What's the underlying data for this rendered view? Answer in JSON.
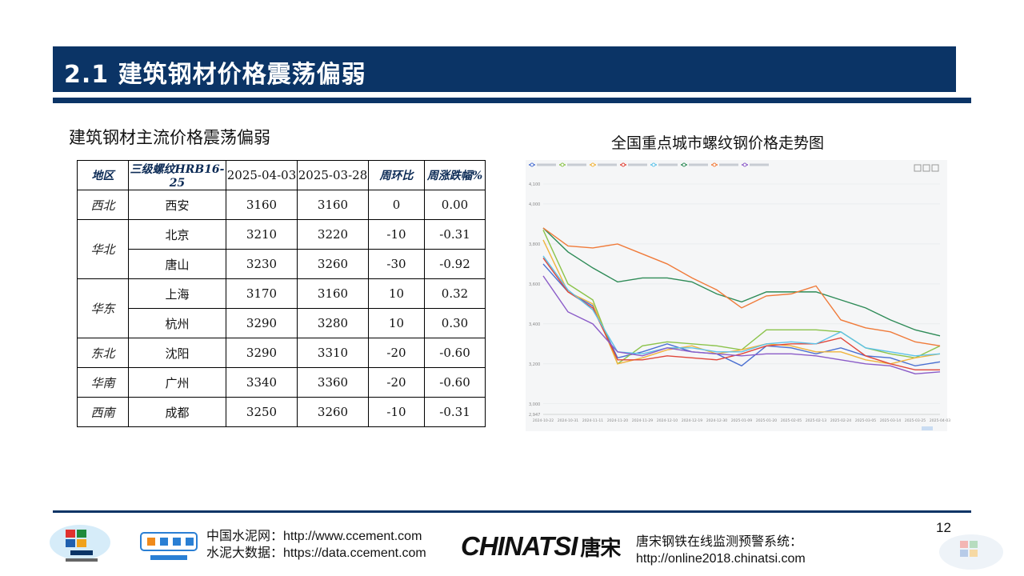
{
  "header": {
    "title": "2.1 建筑钢材价格震荡偏弱"
  },
  "subtitle": "建筑钢材主流价格震荡偏弱",
  "chart_title": "全国重点城市螺纹钢价格走势图",
  "table": {
    "headers": [
      "地区",
      "三级螺纹HRB16-25",
      "2025-04-03",
      "2025-03-28",
      "周环比",
      "周涨跌幅%"
    ],
    "rows": [
      {
        "region": "西北",
        "city": "西安",
        "current": "3160",
        "previous": "3160",
        "wow": "0",
        "pct": "0.00"
      },
      {
        "region": "华北",
        "city": "北京",
        "current": "3210",
        "previous": "3220",
        "wow": "-10",
        "pct": "-0.31"
      },
      {
        "region": "",
        "city": "唐山",
        "current": "3230",
        "previous": "3260",
        "wow": "-30",
        "pct": "-0.92"
      },
      {
        "region": "华东",
        "city": "上海",
        "current": "3170",
        "previous": "3160",
        "wow": "10",
        "pct": "0.32"
      },
      {
        "region": "",
        "city": "杭州",
        "current": "3290",
        "previous": "3280",
        "wow": "10",
        "pct": "0.30"
      },
      {
        "region": "东北",
        "city": "沈阳",
        "current": "3290",
        "previous": "3310",
        "wow": "-20",
        "pct": "-0.60"
      },
      {
        "region": "华南",
        "city": "广州",
        "current": "3340",
        "previous": "3360",
        "wow": "-20",
        "pct": "-0.60"
      },
      {
        "region": "西南",
        "city": "成都",
        "current": "3250",
        "previous": "3260",
        "wow": "-10",
        "pct": "-0.31"
      }
    ]
  },
  "chart_data": {
    "type": "line",
    "yticks": [
      "4,100",
      "4,000",
      "3,800",
      "3,600",
      "3,400",
      "3,200",
      "3,000",
      "2,947"
    ],
    "ylim": [
      2947,
      4100
    ],
    "x": [
      "2024-10-22",
      "2024-10-31",
      "2024-11-11",
      "2024-11-20",
      "2024-11-29",
      "2024-12-10",
      "2024-12-19",
      "2024-12-30",
      "2025-01-09",
      "2025-01-20",
      "2025-02-05",
      "2025-02-13",
      "2025-02-24",
      "2025-03-05",
      "2025-03-14",
      "2025-03-25",
      "2025-04-03"
    ],
    "legend_position": "top-left",
    "series": [
      {
        "color": "#4a6fd1",
        "values": [
          3700,
          3560,
          3490,
          3230,
          3260,
          3300,
          3260,
          3250,
          3190,
          3290,
          3280,
          3250,
          3280,
          3240,
          3230,
          3190,
          3210
        ]
      },
      {
        "color": "#8bc34a",
        "values": [
          3870,
          3600,
          3520,
          3200,
          3290,
          3310,
          3300,
          3290,
          3270,
          3370,
          3370,
          3370,
          3360,
          3280,
          3250,
          3230,
          3290
        ]
      },
      {
        "color": "#f0b43c",
        "values": [
          3820,
          3560,
          3500,
          3200,
          3230,
          3270,
          3290,
          3250,
          3270,
          3300,
          3290,
          3260,
          3260,
          3220,
          3200,
          3230,
          3250
        ]
      },
      {
        "color": "#e0463a",
        "values": [
          3730,
          3560,
          3480,
          3220,
          3220,
          3240,
          3230,
          3220,
          3250,
          3290,
          3300,
          3300,
          3330,
          3240,
          3200,
          3170,
          3170
        ]
      },
      {
        "color": "#5dc2e8",
        "values": [
          3740,
          3570,
          3470,
          3260,
          3250,
          3280,
          3280,
          3260,
          3260,
          3300,
          3310,
          3300,
          3360,
          3280,
          3260,
          3240,
          3250
        ]
      },
      {
        "color": "#2e8b57",
        "values": [
          3880,
          3760,
          3680,
          3610,
          3630,
          3630,
          3610,
          3550,
          3510,
          3560,
          3560,
          3560,
          3520,
          3480,
          3420,
          3370,
          3340
        ]
      },
      {
        "color": "#f07b3a",
        "values": [
          3880,
          3790,
          3780,
          3800,
          3750,
          3700,
          3630,
          3570,
          3480,
          3540,
          3550,
          3590,
          3420,
          3380,
          3360,
          3310,
          3290
        ]
      },
      {
        "color": "#8b5cc8",
        "values": [
          3640,
          3460,
          3400,
          3260,
          3240,
          3280,
          3260,
          3250,
          3240,
          3250,
          3250,
          3240,
          3220,
          3200,
          3190,
          3150,
          3160
        ]
      }
    ]
  },
  "footer": {
    "ccement_line1": "中国水泥网：http://www.ccement.com",
    "ccement_line2": "水泥大数据：https://data.ccement.com",
    "chinatsi_brand": "CHINATSI",
    "chinatsi_cn": "唐宋",
    "chinatsi_line1": "唐宋钢铁在线监测预警系统：",
    "chinatsi_line2": "http://online2018.chinatsi.com",
    "page_number": "12"
  }
}
